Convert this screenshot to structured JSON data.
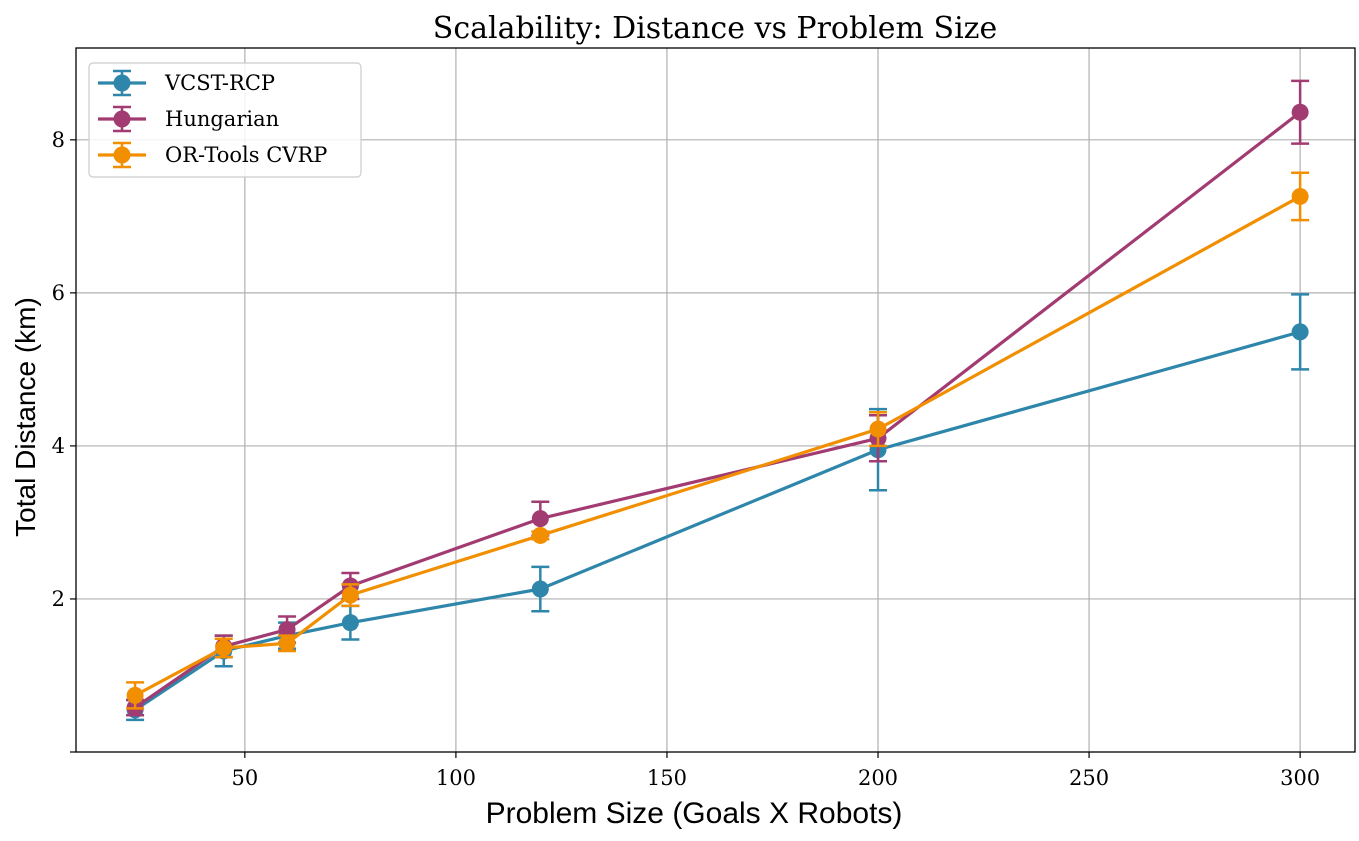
{
  "chart_data": {
    "type": "line",
    "title": "Scalability: Distance vs Problem Size",
    "xlabel": "Problem Size (Goals X Robots)",
    "ylabel": "Total Distance (km)",
    "xlim": [
      10,
      313
    ],
    "ylim": [
      0,
      9.2
    ],
    "xticks": [
      50,
      100,
      150,
      200,
      250,
      300
    ],
    "yticks": [
      2,
      4,
      6,
      8
    ],
    "grid": true,
    "legend_position": "top-left",
    "x": [
      24,
      45,
      60,
      75,
      120,
      200,
      300
    ],
    "series": [
      {
        "name": "VCST-RCP",
        "color": "#2e86ab",
        "values": [
          0.55,
          1.32,
          1.52,
          1.69,
          2.13,
          3.95,
          5.49
        ],
        "errors": [
          0.13,
          0.2,
          0.17,
          0.22,
          0.29,
          0.53,
          0.49
        ]
      },
      {
        "name": "Hungarian",
        "color": "#a23b72",
        "values": [
          0.58,
          1.38,
          1.6,
          2.17,
          3.05,
          4.1,
          8.36
        ],
        "errors": [
          0.1,
          0.14,
          0.17,
          0.17,
          0.22,
          0.3,
          0.41
        ]
      },
      {
        "name": "OR-Tools CVRP",
        "color": "#f18f01",
        "values": [
          0.74,
          1.36,
          1.42,
          2.05,
          2.83,
          4.22,
          7.26
        ],
        "errors": [
          0.17,
          0.12,
          0.1,
          0.14,
          0.05,
          0.22,
          0.31
        ]
      }
    ]
  }
}
